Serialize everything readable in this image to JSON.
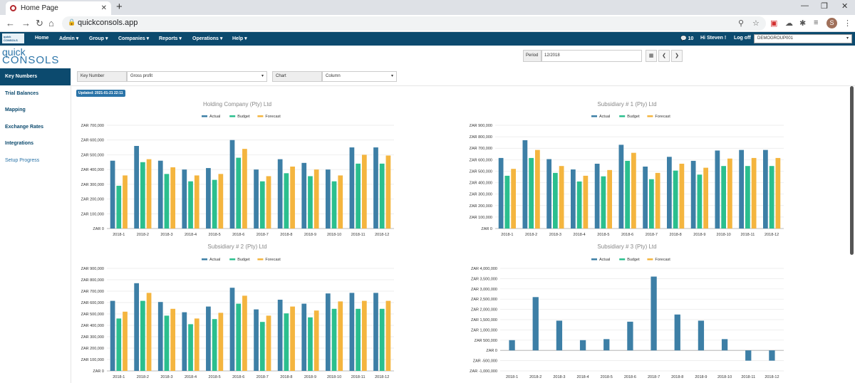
{
  "browser": {
    "tab_title": "Home Page",
    "url": "quickconsols.app"
  },
  "nav": {
    "logo_text": "quick CONSOLS",
    "items": [
      "Home",
      "Admin ▾",
      "Group ▾",
      "Companies ▾",
      "Reports ▾",
      "Operations ▾",
      "Help ▾"
    ],
    "messages": "💬 10",
    "greeting": "Hi Steven !",
    "logoff": "Log off",
    "company": "DEMOGROUP001",
    "avatar": "S"
  },
  "logo": {
    "line1": "quick",
    "line2": "CONSOLS"
  },
  "period": {
    "label": "Period",
    "value": "12/2018"
  },
  "sidebar": {
    "items": [
      "Key Numbers",
      "Trial Balances",
      "Mapping",
      "Exchange Rates",
      "Integrations",
      "Setup Progress"
    ]
  },
  "filters": {
    "key_number_label": "Key Number",
    "key_number_value": "Gross profit",
    "chart_label": "Chart",
    "chart_value": "Column"
  },
  "updated": "Updated: 2021-01-21 22:11",
  "colors": {
    "actual": "#3d7fa6",
    "budget": "#2bbf8e",
    "forecast": "#f4b53f",
    "nav": "#0c4a6e"
  },
  "legend": [
    "Actual",
    "Budget",
    "Forecast"
  ],
  "chart_data": [
    {
      "type": "bar",
      "title": "Holding Company (Pty) Ltd",
      "categories": [
        "2018-1",
        "2018-2",
        "2018-3",
        "2018-4",
        "2018-5",
        "2018-6",
        "2018-7",
        "2018-8",
        "2018-9",
        "2018-10",
        "2018-11",
        "2018-12"
      ],
      "yticks": [
        "ZAR 0",
        "ZAR 100,000",
        "ZAR 200,000",
        "ZAR 300,000",
        "ZAR 400,000",
        "ZAR 500,000",
        "ZAR 600,000",
        "ZAR 700,000"
      ],
      "ylim": [
        0,
        700000
      ],
      "series": [
        {
          "name": "Actual",
          "values": [
            460000,
            560000,
            460000,
            400000,
            410000,
            600000,
            400000,
            470000,
            445000,
            400000,
            550000,
            550000
          ]
        },
        {
          "name": "Budget",
          "values": [
            290000,
            450000,
            370000,
            320000,
            330000,
            480000,
            320000,
            375000,
            355000,
            320000,
            440000,
            440000
          ]
        },
        {
          "name": "Forecast",
          "values": [
            360000,
            470000,
            415000,
            360000,
            370000,
            540000,
            355000,
            420000,
            400000,
            360000,
            500000,
            495000
          ]
        }
      ]
    },
    {
      "type": "bar",
      "title": "Subsidiary # 1 (Pty) Ltd",
      "categories": [
        "2018-1",
        "2018-2",
        "2018-3",
        "2018-4",
        "2018-5",
        "2018-6",
        "2018-7",
        "2018-8",
        "2018-9",
        "2018-10",
        "2018-11",
        "2018-12"
      ],
      "yticks": [
        "ZAR 0",
        "ZAR 100,000",
        "ZAR 200,000",
        "ZAR 300,000",
        "ZAR 400,000",
        "ZAR 500,000",
        "ZAR 600,000",
        "ZAR 700,000",
        "ZAR 800,000",
        "ZAR 900,000"
      ],
      "ylim": [
        0,
        900000
      ],
      "series": [
        {
          "name": "Actual",
          "values": [
            615000,
            770000,
            605000,
            515000,
            565000,
            730000,
            540000,
            625000,
            590000,
            680000,
            685000,
            685000
          ]
        },
        {
          "name": "Budget",
          "values": [
            460000,
            615000,
            485000,
            410000,
            455000,
            590000,
            430000,
            505000,
            470000,
            545000,
            545000,
            545000
          ]
        },
        {
          "name": "Forecast",
          "values": [
            520000,
            685000,
            545000,
            460000,
            510000,
            660000,
            485000,
            565000,
            530000,
            610000,
            615000,
            615000
          ]
        }
      ]
    },
    {
      "type": "bar",
      "title": "Subsidiary # 2 (Pty) Ltd",
      "categories": [
        "2018-1",
        "2018-2",
        "2018-3",
        "2018-4",
        "2018-5",
        "2018-6",
        "2018-7",
        "2018-8",
        "2018-9",
        "2018-10",
        "2018-11",
        "2018-12"
      ],
      "yticks": [
        "ZAR 0",
        "ZAR 100,000",
        "ZAR 200,000",
        "ZAR 300,000",
        "ZAR 400,000",
        "ZAR 500,000",
        "ZAR 600,000",
        "ZAR 700,000",
        "ZAR 800,000",
        "ZAR 900,000"
      ],
      "ylim": [
        0,
        900000
      ],
      "series": [
        {
          "name": "Actual",
          "values": [
            615000,
            770000,
            605000,
            515000,
            565000,
            730000,
            540000,
            625000,
            590000,
            680000,
            685000,
            685000
          ]
        },
        {
          "name": "Budget",
          "values": [
            460000,
            615000,
            485000,
            410000,
            455000,
            590000,
            430000,
            505000,
            470000,
            545000,
            545000,
            545000
          ]
        },
        {
          "name": "Forecast",
          "values": [
            520000,
            685000,
            545000,
            460000,
            510000,
            660000,
            485000,
            565000,
            530000,
            610000,
            615000,
            615000
          ]
        }
      ]
    },
    {
      "type": "bar",
      "title": "Subsidiary # 3 (Pty) Ltd",
      "categories": [
        "2018-1",
        "2018-2",
        "2018-3",
        "2018-4",
        "2018-5",
        "2018-6",
        "2018-7",
        "2018-8",
        "2018-9",
        "2018-10",
        "2018-11",
        "2018-12"
      ],
      "yticks": [
        "ZAR -1,000,000",
        "ZAR -500,000",
        "ZAR 0",
        "ZAR 500,000",
        "ZAR 1,000,000",
        "ZAR 1,500,000",
        "ZAR 2,000,000",
        "ZAR 2,500,000",
        "ZAR 3,000,000",
        "ZAR 3,500,000",
        "ZAR 4,000,000"
      ],
      "ylim": [
        -1000000,
        4000000
      ],
      "series": [
        {
          "name": "Actual",
          "values": [
            500000,
            2600000,
            1450000,
            500000,
            550000,
            1400000,
            3600000,
            1750000,
            1450000,
            550000,
            -500000,
            -500000
          ]
        },
        {
          "name": "Budget",
          "values": [
            0,
            0,
            0,
            0,
            0,
            0,
            0,
            0,
            0,
            0,
            0,
            0
          ]
        },
        {
          "name": "Forecast",
          "values": [
            0,
            0,
            0,
            0,
            0,
            0,
            0,
            0,
            0,
            0,
            0,
            0
          ]
        }
      ]
    }
  ]
}
